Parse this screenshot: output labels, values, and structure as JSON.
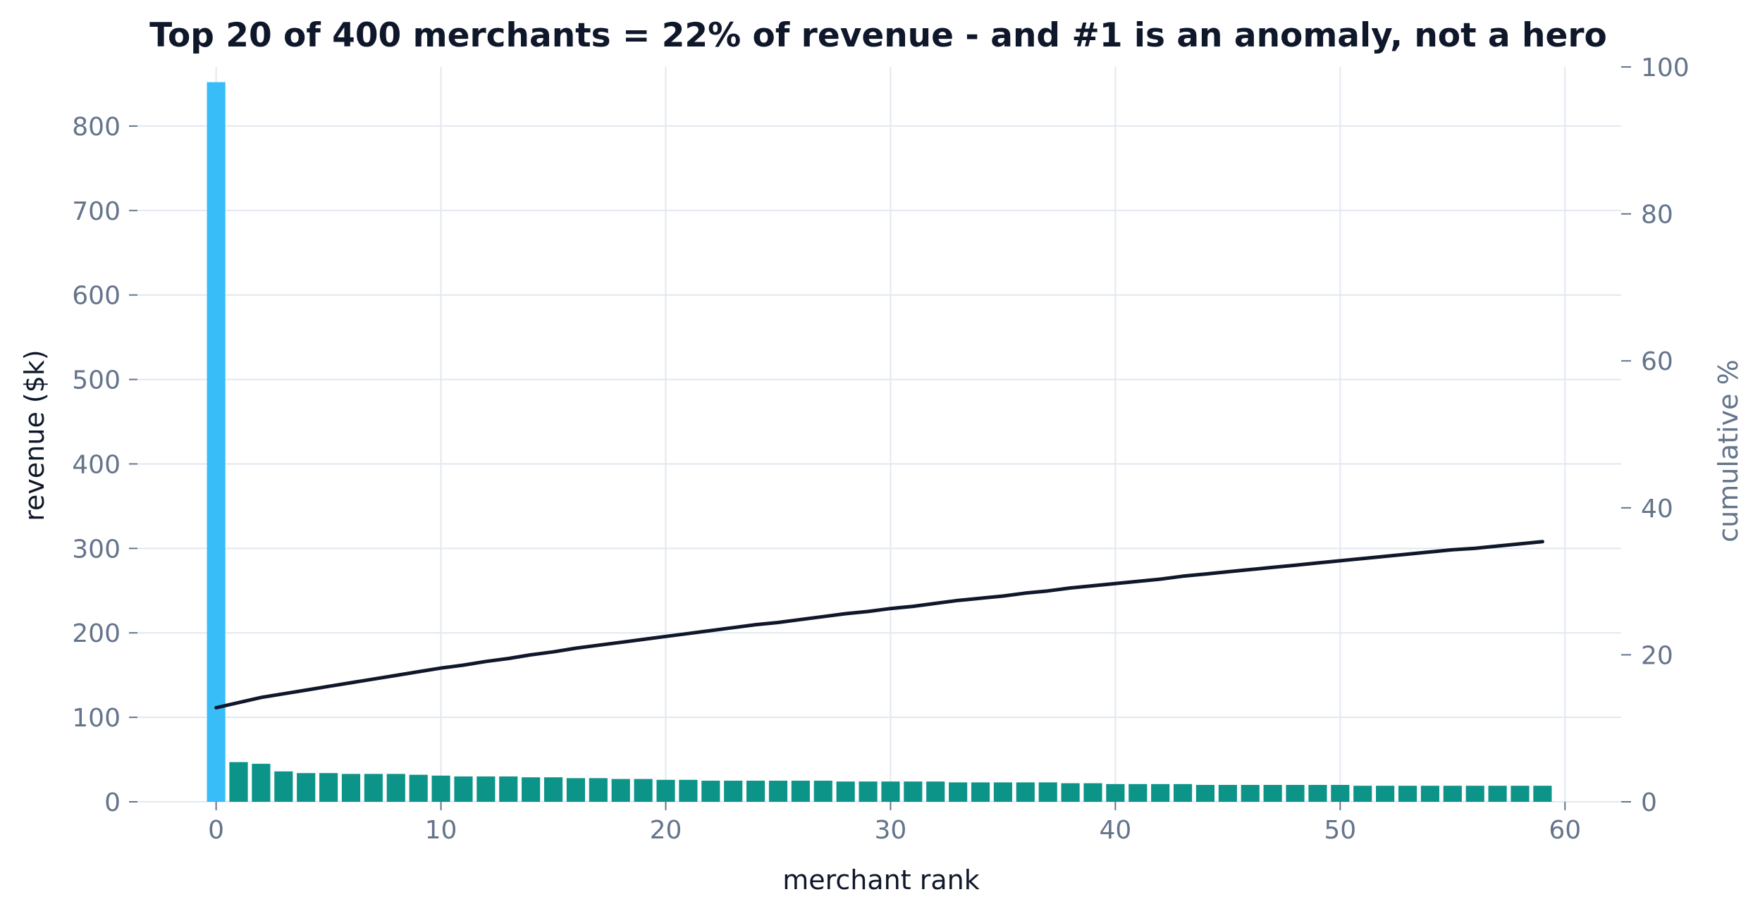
{
  "chart_data": {
    "type": "bar",
    "title": "Top 20 of 400 merchants = 22% of revenue - and #1 is an anomaly, not a hero",
    "xlabel": "merchant rank",
    "ylabel": "revenue ($k)",
    "y2label": "cumulative %",
    "xlim": [
      -3.5,
      62.5
    ],
    "ylim": [
      0,
      870
    ],
    "y2lim": [
      0,
      100
    ],
    "x_ticks": [
      0,
      10,
      20,
      30,
      40,
      50,
      60
    ],
    "y_ticks": [
      0,
      100,
      200,
      300,
      400,
      500,
      600,
      700,
      800
    ],
    "y2_ticks": [
      0,
      20,
      40,
      60,
      80,
      100
    ],
    "grid": true,
    "colors": {
      "anomaly": "#38bdf8",
      "bars": "#0d9488",
      "cumulative": "#0f172a"
    },
    "series": [
      {
        "type": "bar",
        "x": [
          0,
          1,
          2,
          3,
          4,
          5,
          6,
          7,
          8,
          9,
          10,
          11,
          12,
          13,
          14,
          15,
          16,
          17,
          18,
          19,
          20,
          21,
          22,
          23,
          24,
          25,
          26,
          27,
          28,
          29,
          30,
          31,
          32,
          33,
          34,
          35,
          36,
          37,
          38,
          39,
          40,
          41,
          42,
          43,
          44,
          45,
          46,
          47,
          48,
          49,
          50,
          51,
          52,
          53,
          54,
          55,
          56,
          57,
          58,
          59
        ],
        "values": [
          852,
          47,
          45,
          36,
          34,
          34,
          33,
          33,
          33,
          32,
          31,
          30,
          30,
          30,
          29,
          29,
          28,
          28,
          27,
          27,
          26,
          26,
          25,
          25,
          25,
          25,
          25,
          25,
          24,
          24,
          24,
          24,
          24,
          23,
          23,
          23,
          23,
          23,
          22,
          22,
          21,
          21,
          21,
          21,
          20,
          20,
          20,
          20,
          20,
          20,
          20,
          19,
          19,
          19,
          19,
          19,
          19,
          19,
          19,
          19
        ],
        "highlight_index": 0
      },
      {
        "type": "line",
        "axis": "right",
        "x": [
          0,
          1,
          2,
          3,
          4,
          5,
          6,
          7,
          8,
          9,
          10,
          11,
          12,
          13,
          14,
          15,
          16,
          17,
          18,
          19,
          20,
          21,
          22,
          23,
          24,
          25,
          26,
          27,
          28,
          29,
          30,
          31,
          32,
          33,
          34,
          35,
          36,
          37,
          38,
          39,
          40,
          41,
          42,
          43,
          44,
          45,
          46,
          47,
          48,
          49,
          50,
          51,
          52,
          53,
          54,
          55,
          56,
          57,
          58,
          59
        ],
        "values": [
          12.8,
          13.5,
          14.2,
          14.7,
          15.2,
          15.7,
          16.2,
          16.7,
          17.2,
          17.7,
          18.2,
          18.6,
          19.1,
          19.5,
          20.0,
          20.4,
          20.9,
          21.3,
          21.7,
          22.1,
          22.5,
          22.9,
          23.3,
          23.7,
          24.1,
          24.4,
          24.8,
          25.2,
          25.6,
          25.9,
          26.3,
          26.6,
          27.0,
          27.4,
          27.7,
          28.0,
          28.4,
          28.7,
          29.1,
          29.4,
          29.7,
          30.0,
          30.3,
          30.7,
          31.0,
          31.3,
          31.6,
          31.9,
          32.2,
          32.5,
          32.8,
          33.1,
          33.4,
          33.7,
          34.0,
          34.3,
          34.5,
          34.8,
          35.1,
          35.4
        ]
      }
    ]
  }
}
